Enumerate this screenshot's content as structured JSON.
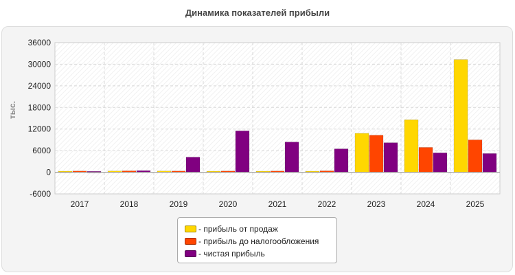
{
  "chart_data": {
    "type": "bar",
    "title": "Динамика показателей прибыли",
    "ylabel": "тыс.",
    "xlabel": "",
    "categories": [
      "2017",
      "2018",
      "2019",
      "2020",
      "2021",
      "2022",
      "2023",
      "2024",
      "2025"
    ],
    "ylim": [
      -6000,
      36000
    ],
    "yticks": [
      -6000,
      0,
      6000,
      12000,
      18000,
      24000,
      30000,
      36000
    ],
    "grid": true,
    "legend_position": "bottom-center",
    "series": [
      {
        "name": "прибыль от продаж",
        "color": "#ffd700",
        "values": [
          100,
          150,
          150,
          100,
          100,
          100,
          10800,
          14600,
          31300
        ]
      },
      {
        "name": "прибыль до налогообложения",
        "color": "#ff4500",
        "values": [
          150,
          200,
          150,
          150,
          150,
          200,
          10300,
          6900,
          9000
        ]
      },
      {
        "name": "чистая прибыль",
        "color": "#800080",
        "values": [
          50,
          450,
          4200,
          11500,
          8400,
          6500,
          8200,
          5400,
          5200
        ]
      }
    ]
  }
}
